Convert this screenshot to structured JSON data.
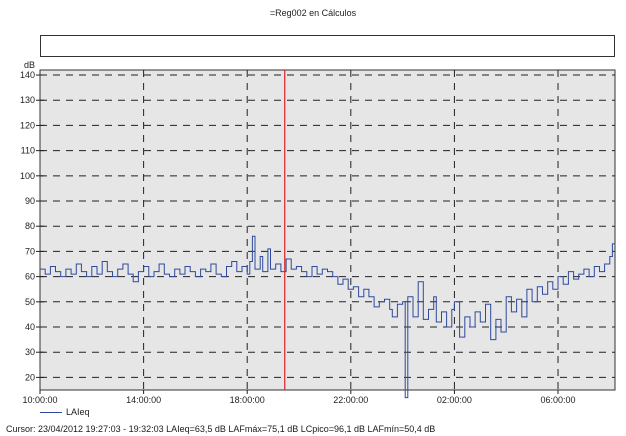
{
  "window": {
    "title": "=Reg002 en Cálculos"
  },
  "chart_data": {
    "type": "line",
    "ylabel": "dB",
    "ylim": [
      15,
      142
    ],
    "y_ticks": [
      20,
      30,
      40,
      50,
      60,
      70,
      80,
      90,
      100,
      110,
      120,
      130,
      140
    ],
    "x_start": "10:00:00",
    "x_range_hours": [
      10,
      32.2
    ],
    "x_ticks": [
      {
        "hour": 10,
        "label": "10:00:00"
      },
      {
        "hour": 14,
        "label": "14:00:00"
      },
      {
        "hour": 18,
        "label": "18:00:00"
      },
      {
        "hour": 22,
        "label": "22:00:00"
      },
      {
        "hour": 26,
        "label": "02:00:00"
      },
      {
        "hour": 30,
        "label": "06:00:00"
      }
    ],
    "grid": true,
    "plot_background": "#e6e6e6",
    "cursor_hour": 19.45,
    "cursor_color": "#e02020",
    "series": [
      {
        "name": "LAIeq",
        "color": "#2e4a9e",
        "step": true,
        "points": [
          [
            10.0,
            63
          ],
          [
            10.2,
            61
          ],
          [
            10.4,
            64
          ],
          [
            10.6,
            62
          ],
          [
            10.8,
            60
          ],
          [
            11.0,
            63
          ],
          [
            11.2,
            61
          ],
          [
            11.4,
            65
          ],
          [
            11.6,
            62
          ],
          [
            11.8,
            60
          ],
          [
            12.0,
            64
          ],
          [
            12.2,
            61
          ],
          [
            12.4,
            66
          ],
          [
            12.6,
            62
          ],
          [
            12.8,
            60
          ],
          [
            13.0,
            63
          ],
          [
            13.2,
            65
          ],
          [
            13.4,
            61
          ],
          [
            13.6,
            58
          ],
          [
            13.8,
            62
          ],
          [
            14.0,
            64
          ],
          [
            14.2,
            60
          ],
          [
            14.4,
            62
          ],
          [
            14.6,
            65
          ],
          [
            14.8,
            61
          ],
          [
            15.0,
            60
          ],
          [
            15.2,
            63
          ],
          [
            15.4,
            61
          ],
          [
            15.6,
            64
          ],
          [
            15.8,
            62
          ],
          [
            16.0,
            60
          ],
          [
            16.2,
            63
          ],
          [
            16.4,
            62
          ],
          [
            16.6,
            65
          ],
          [
            16.8,
            61
          ],
          [
            17.0,
            60
          ],
          [
            17.2,
            64
          ],
          [
            17.4,
            66
          ],
          [
            17.6,
            62
          ],
          [
            17.8,
            64
          ],
          [
            18.0,
            61
          ],
          [
            18.1,
            66
          ],
          [
            18.2,
            76
          ],
          [
            18.3,
            63
          ],
          [
            18.5,
            68
          ],
          [
            18.6,
            62
          ],
          [
            18.8,
            71
          ],
          [
            18.9,
            63
          ],
          [
            19.1,
            65
          ],
          [
            19.3,
            62
          ],
          [
            19.5,
            67
          ],
          [
            19.7,
            63
          ],
          [
            19.9,
            64
          ],
          [
            20.1,
            62
          ],
          [
            20.3,
            60
          ],
          [
            20.5,
            64
          ],
          [
            20.7,
            61
          ],
          [
            20.9,
            63
          ],
          [
            21.1,
            62
          ],
          [
            21.3,
            60
          ],
          [
            21.5,
            57
          ],
          [
            21.7,
            59
          ],
          [
            21.9,
            55
          ],
          [
            22.1,
            56
          ],
          [
            22.3,
            52
          ],
          [
            22.5,
            55
          ],
          [
            22.7,
            52
          ],
          [
            22.9,
            48
          ],
          [
            23.1,
            50
          ],
          [
            23.3,
            51
          ],
          [
            23.5,
            47
          ],
          [
            23.6,
            44
          ],
          [
            23.8,
            49
          ],
          [
            24.0,
            50
          ],
          [
            24.1,
            12
          ],
          [
            24.2,
            52
          ],
          [
            24.4,
            44
          ],
          [
            24.6,
            58
          ],
          [
            24.8,
            43
          ],
          [
            25.0,
            47
          ],
          [
            25.2,
            52
          ],
          [
            25.3,
            42
          ],
          [
            25.5,
            46
          ],
          [
            25.7,
            40
          ],
          [
            25.9,
            47
          ],
          [
            26.0,
            50
          ],
          [
            26.2,
            36
          ],
          [
            26.4,
            44
          ],
          [
            26.6,
            40
          ],
          [
            26.8,
            46
          ],
          [
            27.0,
            42
          ],
          [
            27.2,
            49
          ],
          [
            27.4,
            35
          ],
          [
            27.6,
            43
          ],
          [
            27.8,
            38
          ],
          [
            28.0,
            52
          ],
          [
            28.2,
            46
          ],
          [
            28.4,
            51
          ],
          [
            28.6,
            44
          ],
          [
            28.8,
            55
          ],
          [
            29.0,
            50
          ],
          [
            29.2,
            56
          ],
          [
            29.4,
            53
          ],
          [
            29.6,
            58
          ],
          [
            29.8,
            55
          ],
          [
            30.0,
            60
          ],
          [
            30.2,
            57
          ],
          [
            30.4,
            62
          ],
          [
            30.6,
            59
          ],
          [
            30.8,
            61
          ],
          [
            31.0,
            63
          ],
          [
            31.2,
            60
          ],
          [
            31.4,
            64
          ],
          [
            31.6,
            62
          ],
          [
            31.8,
            65
          ],
          [
            32.0,
            68
          ],
          [
            32.1,
            73
          ],
          [
            32.2,
            72
          ]
        ]
      }
    ]
  },
  "legend": {
    "label": "LAIeq"
  },
  "cursor_info": {
    "text": "Cursor: 23/04/2012 19:27:03 - 19:32:03  LAIeq=63,5 dB  LAFmáx=75,1 dB  LCpico=96,1 dB  LAFmín=50,4 dB"
  }
}
